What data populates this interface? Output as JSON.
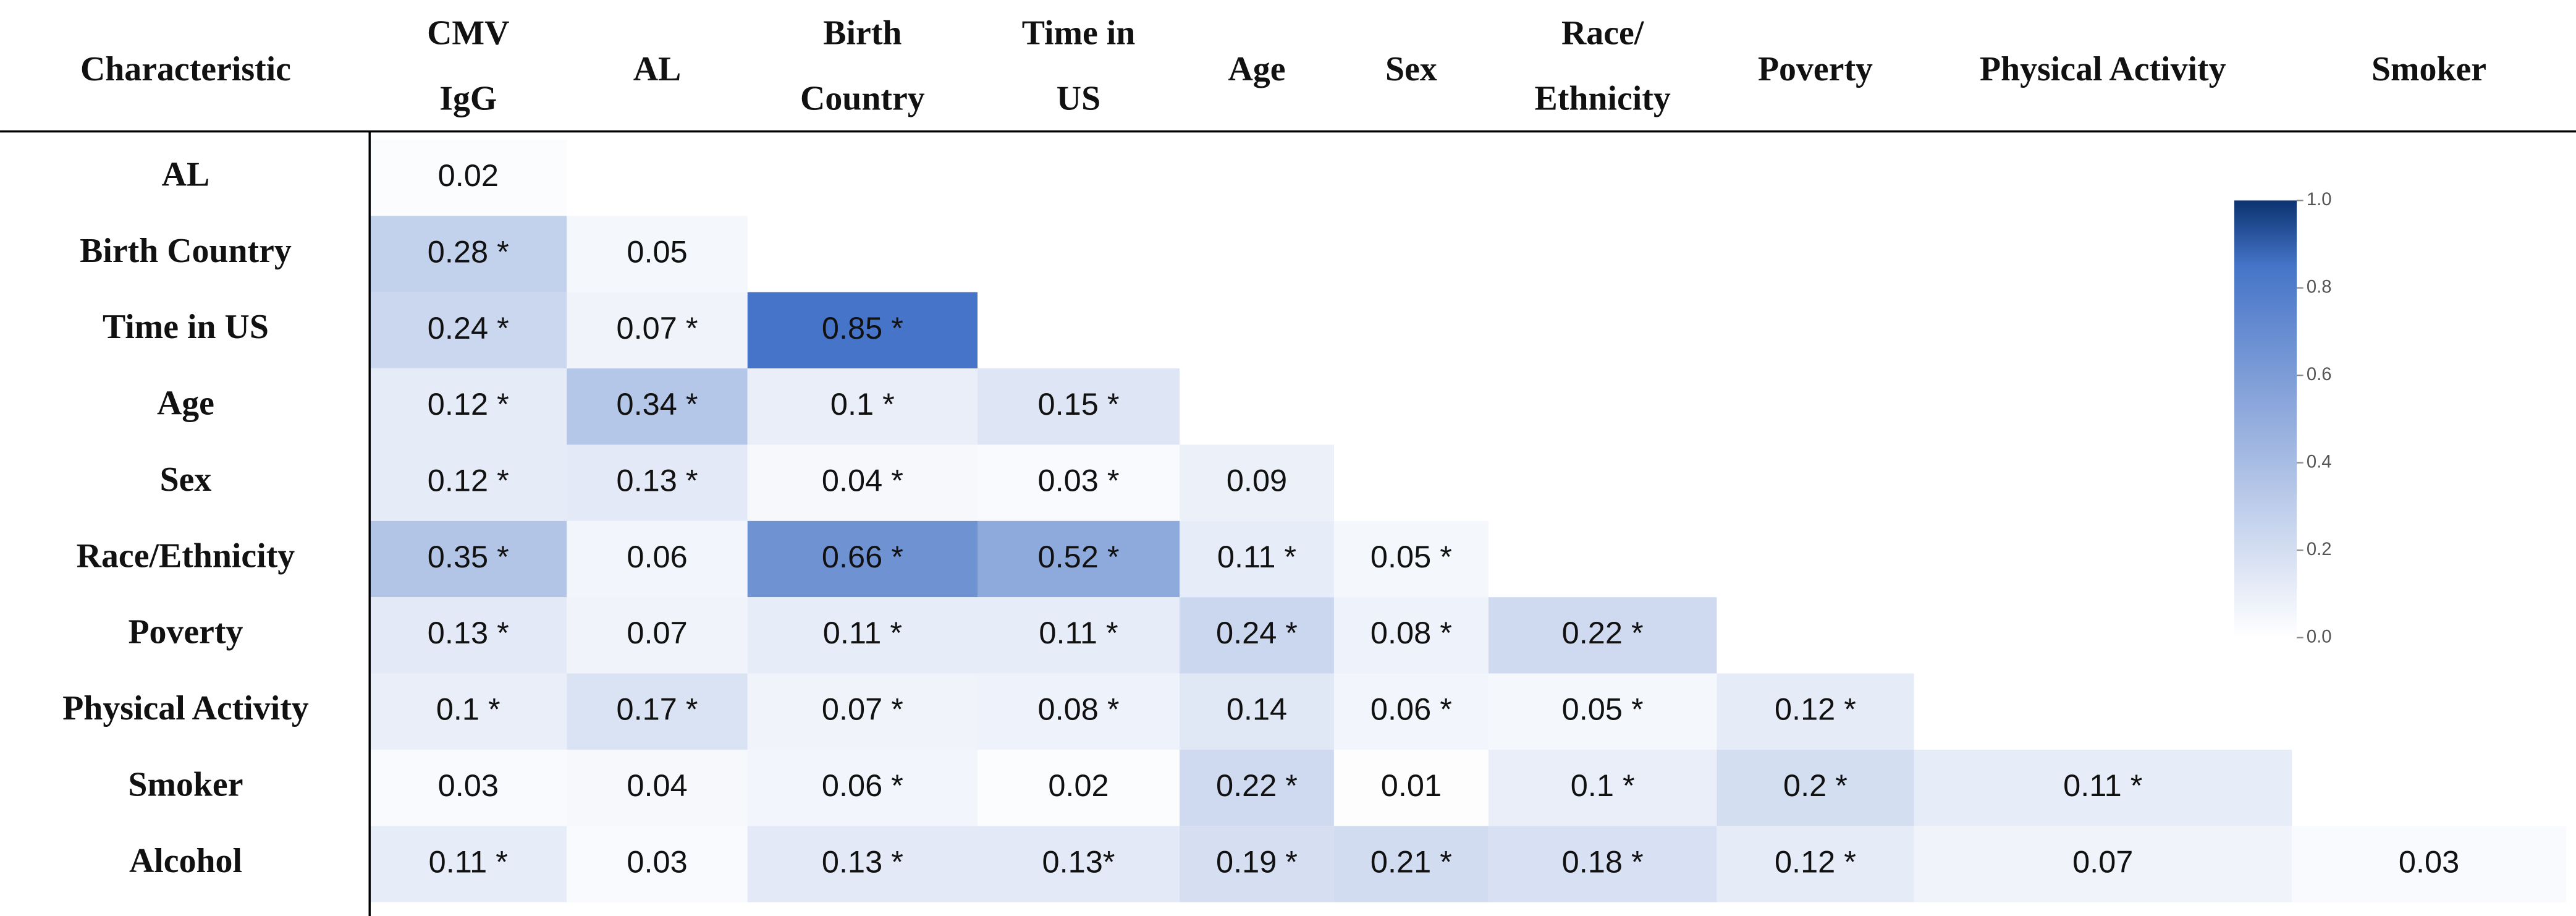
{
  "table": {
    "header": [
      [
        "Characteristic"
      ],
      [
        "CMV",
        "IgG"
      ],
      [
        "AL"
      ],
      [
        "Birth",
        "Country"
      ],
      [
        "Time in",
        "US"
      ],
      [
        "Age"
      ],
      [
        "Sex"
      ],
      [
        "Race/",
        "Ethnicity"
      ],
      [
        "Poverty"
      ],
      [
        "Physical Activity"
      ],
      [
        "Smoker"
      ]
    ],
    "rows": [
      {
        "label": "AL",
        "cells": [
          "0.02"
        ]
      },
      {
        "label": "Birth Country",
        "cells": [
          "0.28 *",
          "0.05"
        ]
      },
      {
        "label": "Time in US",
        "cells": [
          "0.24 *",
          "0.07 *",
          "0.85 *"
        ]
      },
      {
        "label": "Age",
        "cells": [
          "0.12 *",
          "0.34 *",
          "0.1 *",
          "0.15 *"
        ]
      },
      {
        "label": "Sex",
        "cells": [
          "0.12 *",
          "0.13 *",
          "0.04 *",
          "0.03 *",
          "0.09"
        ]
      },
      {
        "label": "Race/Ethnicity",
        "cells": [
          "0.35 *",
          "0.06",
          "0.66 *",
          "0.52 *",
          "0.11 *",
          "0.05 *"
        ]
      },
      {
        "label": "Poverty",
        "cells": [
          "0.13 *",
          "0.07",
          "0.11 *",
          "0.11 *",
          "0.24 *",
          "0.08 *",
          "0.22 *"
        ]
      },
      {
        "label": "Physical Activity",
        "cells": [
          "0.1 *",
          "0.17 *",
          "0.07 *",
          "0.08 *",
          "0.14",
          "0.06 *",
          "0.05 *",
          "0.12 *"
        ]
      },
      {
        "label": "Smoker",
        "cells": [
          "0.03",
          "0.04",
          "0.06 *",
          "0.02",
          "0.22 *",
          "0.01",
          "0.1 *",
          "0.2 *",
          "0.11 *"
        ]
      },
      {
        "label": "Alcohol",
        "cells": [
          "0.11 *",
          "0.03",
          "0.13 *",
          "0.13*",
          "0.19 *",
          "0.21 *",
          "0.18 *",
          "0.12 *",
          "0.07",
          "0.03"
        ]
      }
    ]
  },
  "colorbar": {
    "ticks": [
      {
        "value": 1,
        "label": "1.0"
      },
      {
        "value": 0.8,
        "label": "0.8"
      },
      {
        "value": 0.6,
        "label": "0.6"
      },
      {
        "value": 0.4,
        "label": "0.4"
      },
      {
        "value": 0.2,
        "label": "0.2"
      },
      {
        "value": 0,
        "label": "0.0"
      }
    ]
  }
}
